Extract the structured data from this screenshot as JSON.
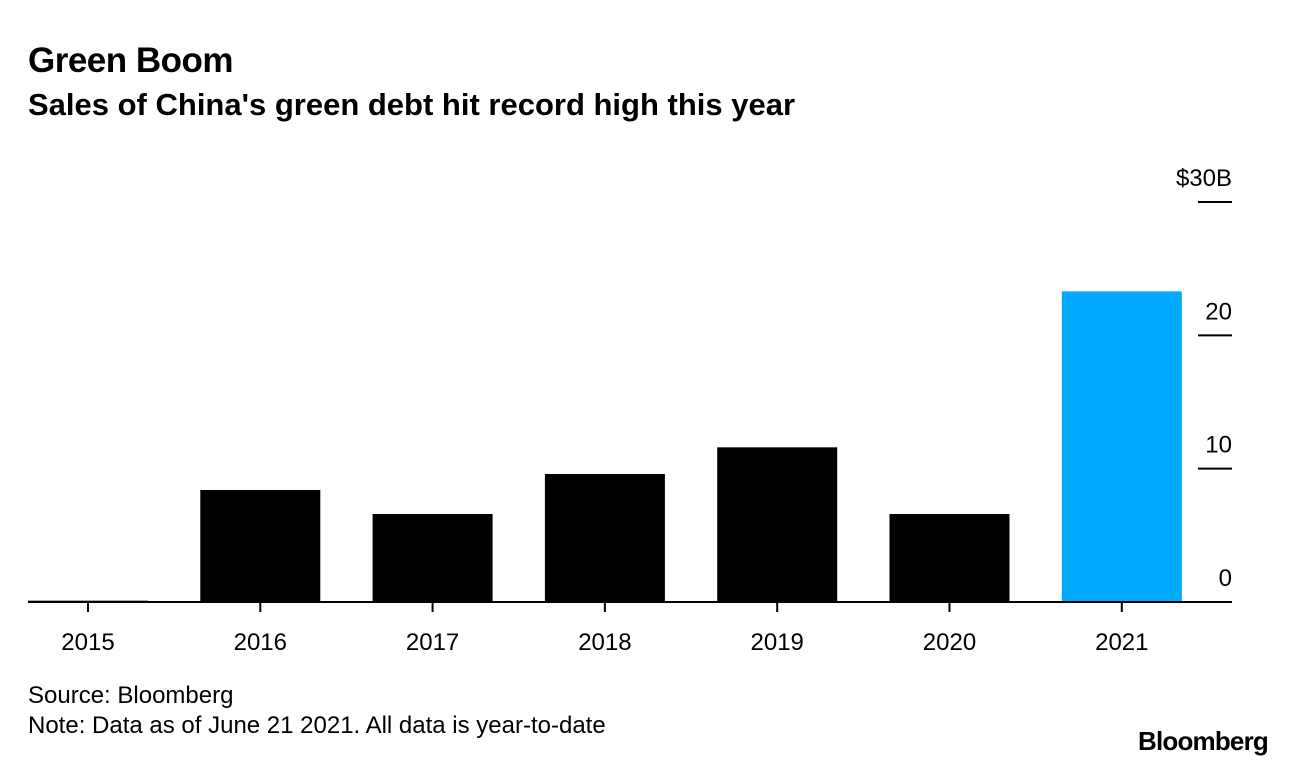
{
  "header": {
    "title": "Green Boom",
    "subtitle": "Sales of China's green debt hit record high this year"
  },
  "footer": {
    "source": "Source: Bloomberg",
    "note": "Note: Data as of June 21 2021. All data is year-to-date",
    "logo": "Bloomberg"
  },
  "colors": {
    "bar": "#000000",
    "highlight": "#00aaff",
    "axis": "#000000"
  },
  "chart_data": {
    "type": "bar",
    "title": "Green Boom",
    "subtitle": "Sales of China's green debt hit record high this year",
    "xlabel": "",
    "ylabel": "",
    "categories": [
      "2015",
      "2016",
      "2017",
      "2018",
      "2019",
      "2020",
      "2021"
    ],
    "values": [
      0.1,
      8.4,
      6.6,
      9.6,
      11.6,
      6.6,
      23.3
    ],
    "highlight_index": 6,
    "ylim": [
      0,
      30
    ],
    "yticks": [
      0,
      10,
      20,
      30
    ],
    "ytick_labels": [
      "0",
      "10",
      "20",
      "$30B"
    ],
    "y_axis_position": "right",
    "grid": false
  }
}
